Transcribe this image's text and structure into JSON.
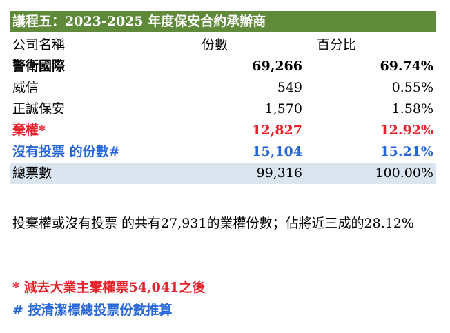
{
  "title": "議程五：2023-2025 年度保安合約承辦商",
  "headers": {
    "company": "公司名稱",
    "shares": "份數",
    "percent": "百分比"
  },
  "rows": [
    {
      "name": "警衛國際",
      "shares": "69,266",
      "percent": "69.74%"
    },
    {
      "name": "威信",
      "shares": "549",
      "percent": "0.55%"
    },
    {
      "name": "正誠保安",
      "shares": "1,570",
      "percent": "1.58%"
    },
    {
      "name": "棄權*",
      "shares": "12,827",
      "percent": "12.92%"
    },
    {
      "name": "沒有投票 的份數#",
      "shares": "15,104",
      "percent": "15.21%"
    },
    {
      "name": "總票數",
      "shares": "99,316",
      "percent": "100.00%"
    }
  ],
  "summary": "投棄權或沒有投票 的共有27,931的業權份數；佔將近三成的28.12%",
  "footnotes": [
    "* 減去大業主棄權票54,041之後",
    "# 按清潔標總投票份數推算"
  ],
  "colors": {
    "title_bg": "#5f8a3a",
    "red": "#e8202a",
    "blue": "#2566d9",
    "total_bg": "#dbe5f0"
  }
}
